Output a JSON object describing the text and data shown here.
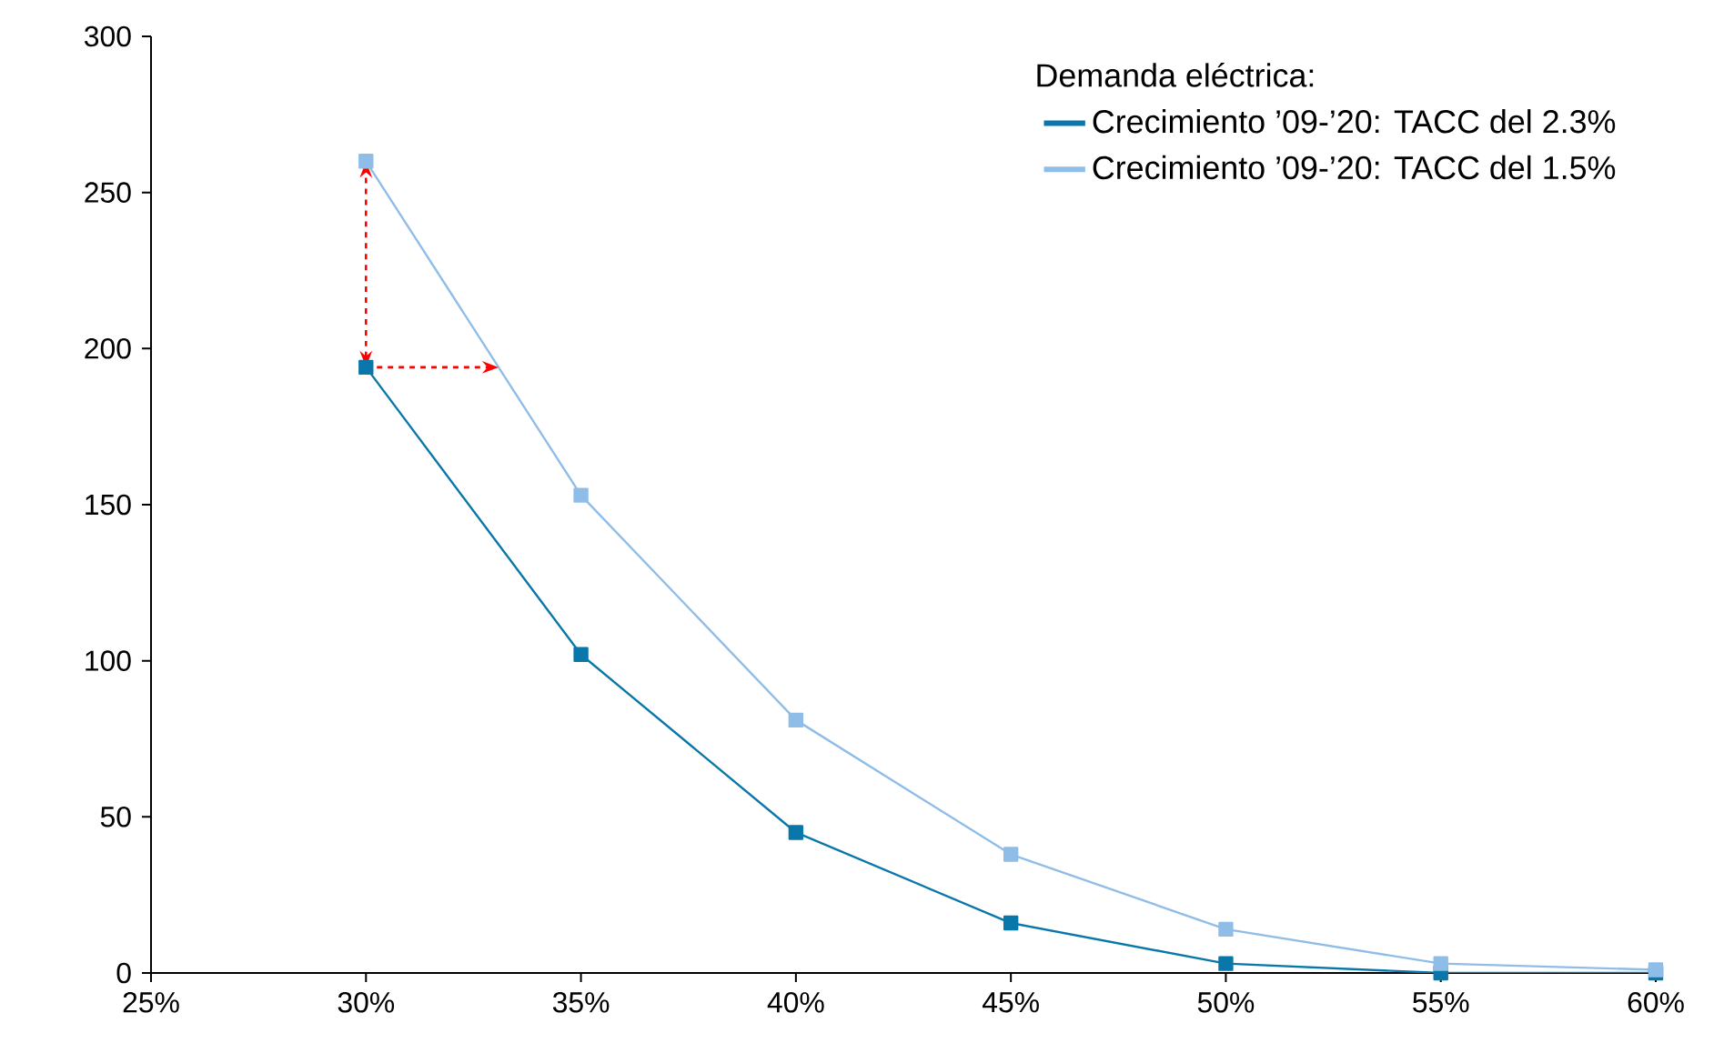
{
  "chart_data": {
    "type": "line",
    "legend_title": "Demanda eléctrica:",
    "x": [
      30,
      35,
      40,
      45,
      50,
      55,
      60
    ],
    "series": [
      {
        "name": "Crecimiento ’09-’20: TACC del 2.3%",
        "color": "#0a77ab",
        "values": [
          194,
          102,
          45,
          16,
          3,
          0,
          0
        ]
      },
      {
        "name": "Crecimiento ’09-’20: TACC del 1.5%",
        "color": "#8fbde8",
        "values": [
          260,
          153,
          81,
          38,
          14,
          3,
          1
        ]
      }
    ],
    "xlim": [
      25,
      60
    ],
    "ylim": [
      0,
      300
    ],
    "xticks": [
      {
        "value": 25,
        "label": "25%"
      },
      {
        "value": 30,
        "label": "30%"
      },
      {
        "value": 35,
        "label": "35%"
      },
      {
        "value": 40,
        "label": "40%"
      },
      {
        "value": 45,
        "label": "45%"
      },
      {
        "value": 50,
        "label": "50%"
      },
      {
        "value": 55,
        "label": "55%"
      },
      {
        "value": 60,
        "label": "60%"
      }
    ],
    "yticks": [
      0,
      50,
      100,
      150,
      200,
      250,
      300
    ],
    "grid": false,
    "legend": "top right",
    "marker": "square",
    "line_style": "solid"
  }
}
